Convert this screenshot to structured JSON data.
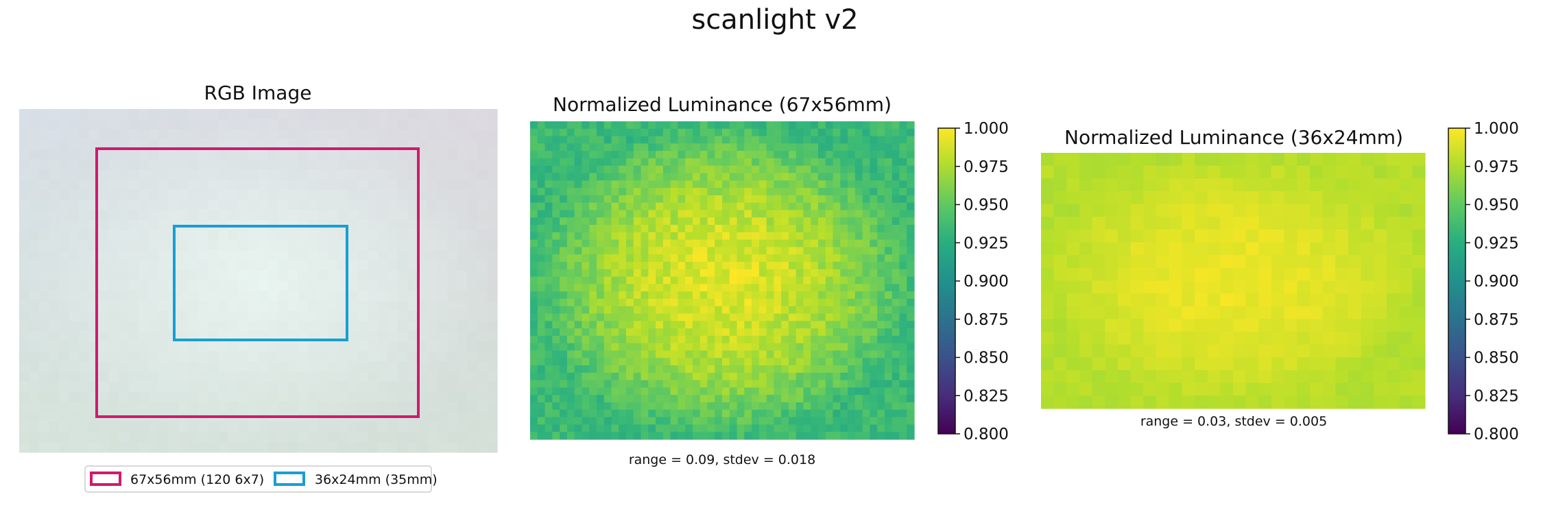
{
  "figure": {
    "suptitle": "scanlight v2"
  },
  "chart_data": [
    {
      "type": "heatmap",
      "title": "RGB Image",
      "image": {
        "cols": 48,
        "rows": 34,
        "description_colors": {
          "top_left": "#d8dfe6",
          "top_right": "#dcd9e0",
          "center": "#e8f4f0",
          "bottom_left": "#d6e4dc",
          "bottom_right": "#d4e0d8"
        }
      },
      "legend": {
        "position": "bottom-center",
        "entries": [
          {
            "label": "67x56mm (120 6x7)",
            "color": "#d01a6e"
          },
          {
            "label": "36x24mm (35mm)",
            "color": "#179fd4"
          }
        ]
      }
    },
    {
      "type": "heatmap",
      "title": "Normalized Luminance (67x56mm)",
      "note": "range = 0.09, stdev = 0.018",
      "colormap": "viridis",
      "cols": 52,
      "rows": 43,
      "value_range": [
        0.91,
        1.0
      ],
      "center_value": 0.99,
      "edge_value": 0.935,
      "colorbar": {
        "min": 0.8,
        "max": 1.0,
        "ticks": [
          "1.000",
          "0.975",
          "0.950",
          "0.925",
          "0.900",
          "0.875",
          "0.850",
          "0.825",
          "0.800"
        ]
      }
    },
    {
      "type": "heatmap",
      "title": "Normalized Luminance (36x24mm)",
      "note": "range = 0.03, stdev = 0.005",
      "colormap": "viridis",
      "cols": 30,
      "rows": 20,
      "value_range": [
        0.97,
        1.0
      ],
      "center_value": 0.995,
      "edge_value": 0.978,
      "colorbar": {
        "min": 0.8,
        "max": 1.0,
        "ticks": [
          "1.000",
          "0.975",
          "0.950",
          "0.925",
          "0.900",
          "0.875",
          "0.850",
          "0.825",
          "0.800"
        ]
      }
    }
  ]
}
